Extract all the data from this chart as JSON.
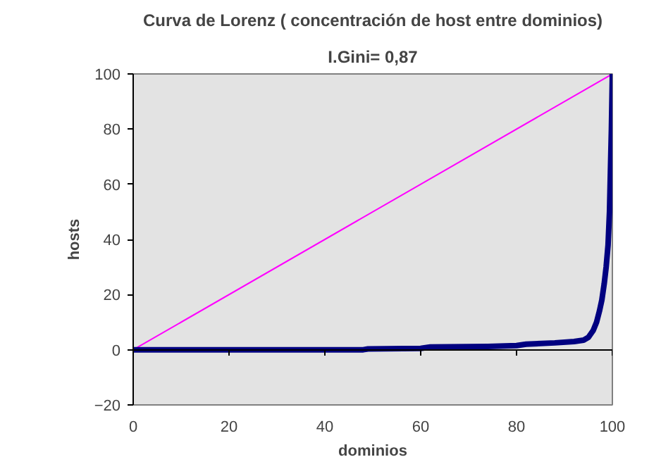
{
  "chart_data": {
    "type": "line",
    "title": "Curva de Lorenz ( concentración de host entre dominios)",
    "subtitle": "I.Gini= 0,87",
    "xlabel": "dominios",
    "ylabel": "hosts",
    "series": [
      {
        "color": "#ff00ff",
        "x": [
          0,
          100
        ],
        "values": [
          0,
          100
        ]
      },
      {
        "color": "#000080",
        "x": [
          0,
          48,
          49,
          60,
          62,
          74,
          80,
          82,
          88,
          92,
          94,
          95,
          96,
          96.7,
          97.3,
          97.8,
          98.3,
          98.7,
          99.1,
          99.4,
          99.6,
          99.8,
          100
        ],
        "values": [
          0,
          0,
          0.3,
          0.5,
          1,
          1.2,
          1.5,
          2,
          2.5,
          3,
          3.5,
          4.5,
          7,
          10,
          14,
          18,
          24,
          30,
          38,
          50,
          65,
          80,
          100
        ]
      }
    ],
    "xlim": [
      0,
      100
    ],
    "xticks": [
      0,
      20,
      40,
      60,
      80,
      100
    ],
    "ylim": [
      -20,
      100
    ],
    "yticks": [
      -20,
      0,
      20,
      40,
      60,
      80,
      100
    ],
    "marker": "none"
  }
}
